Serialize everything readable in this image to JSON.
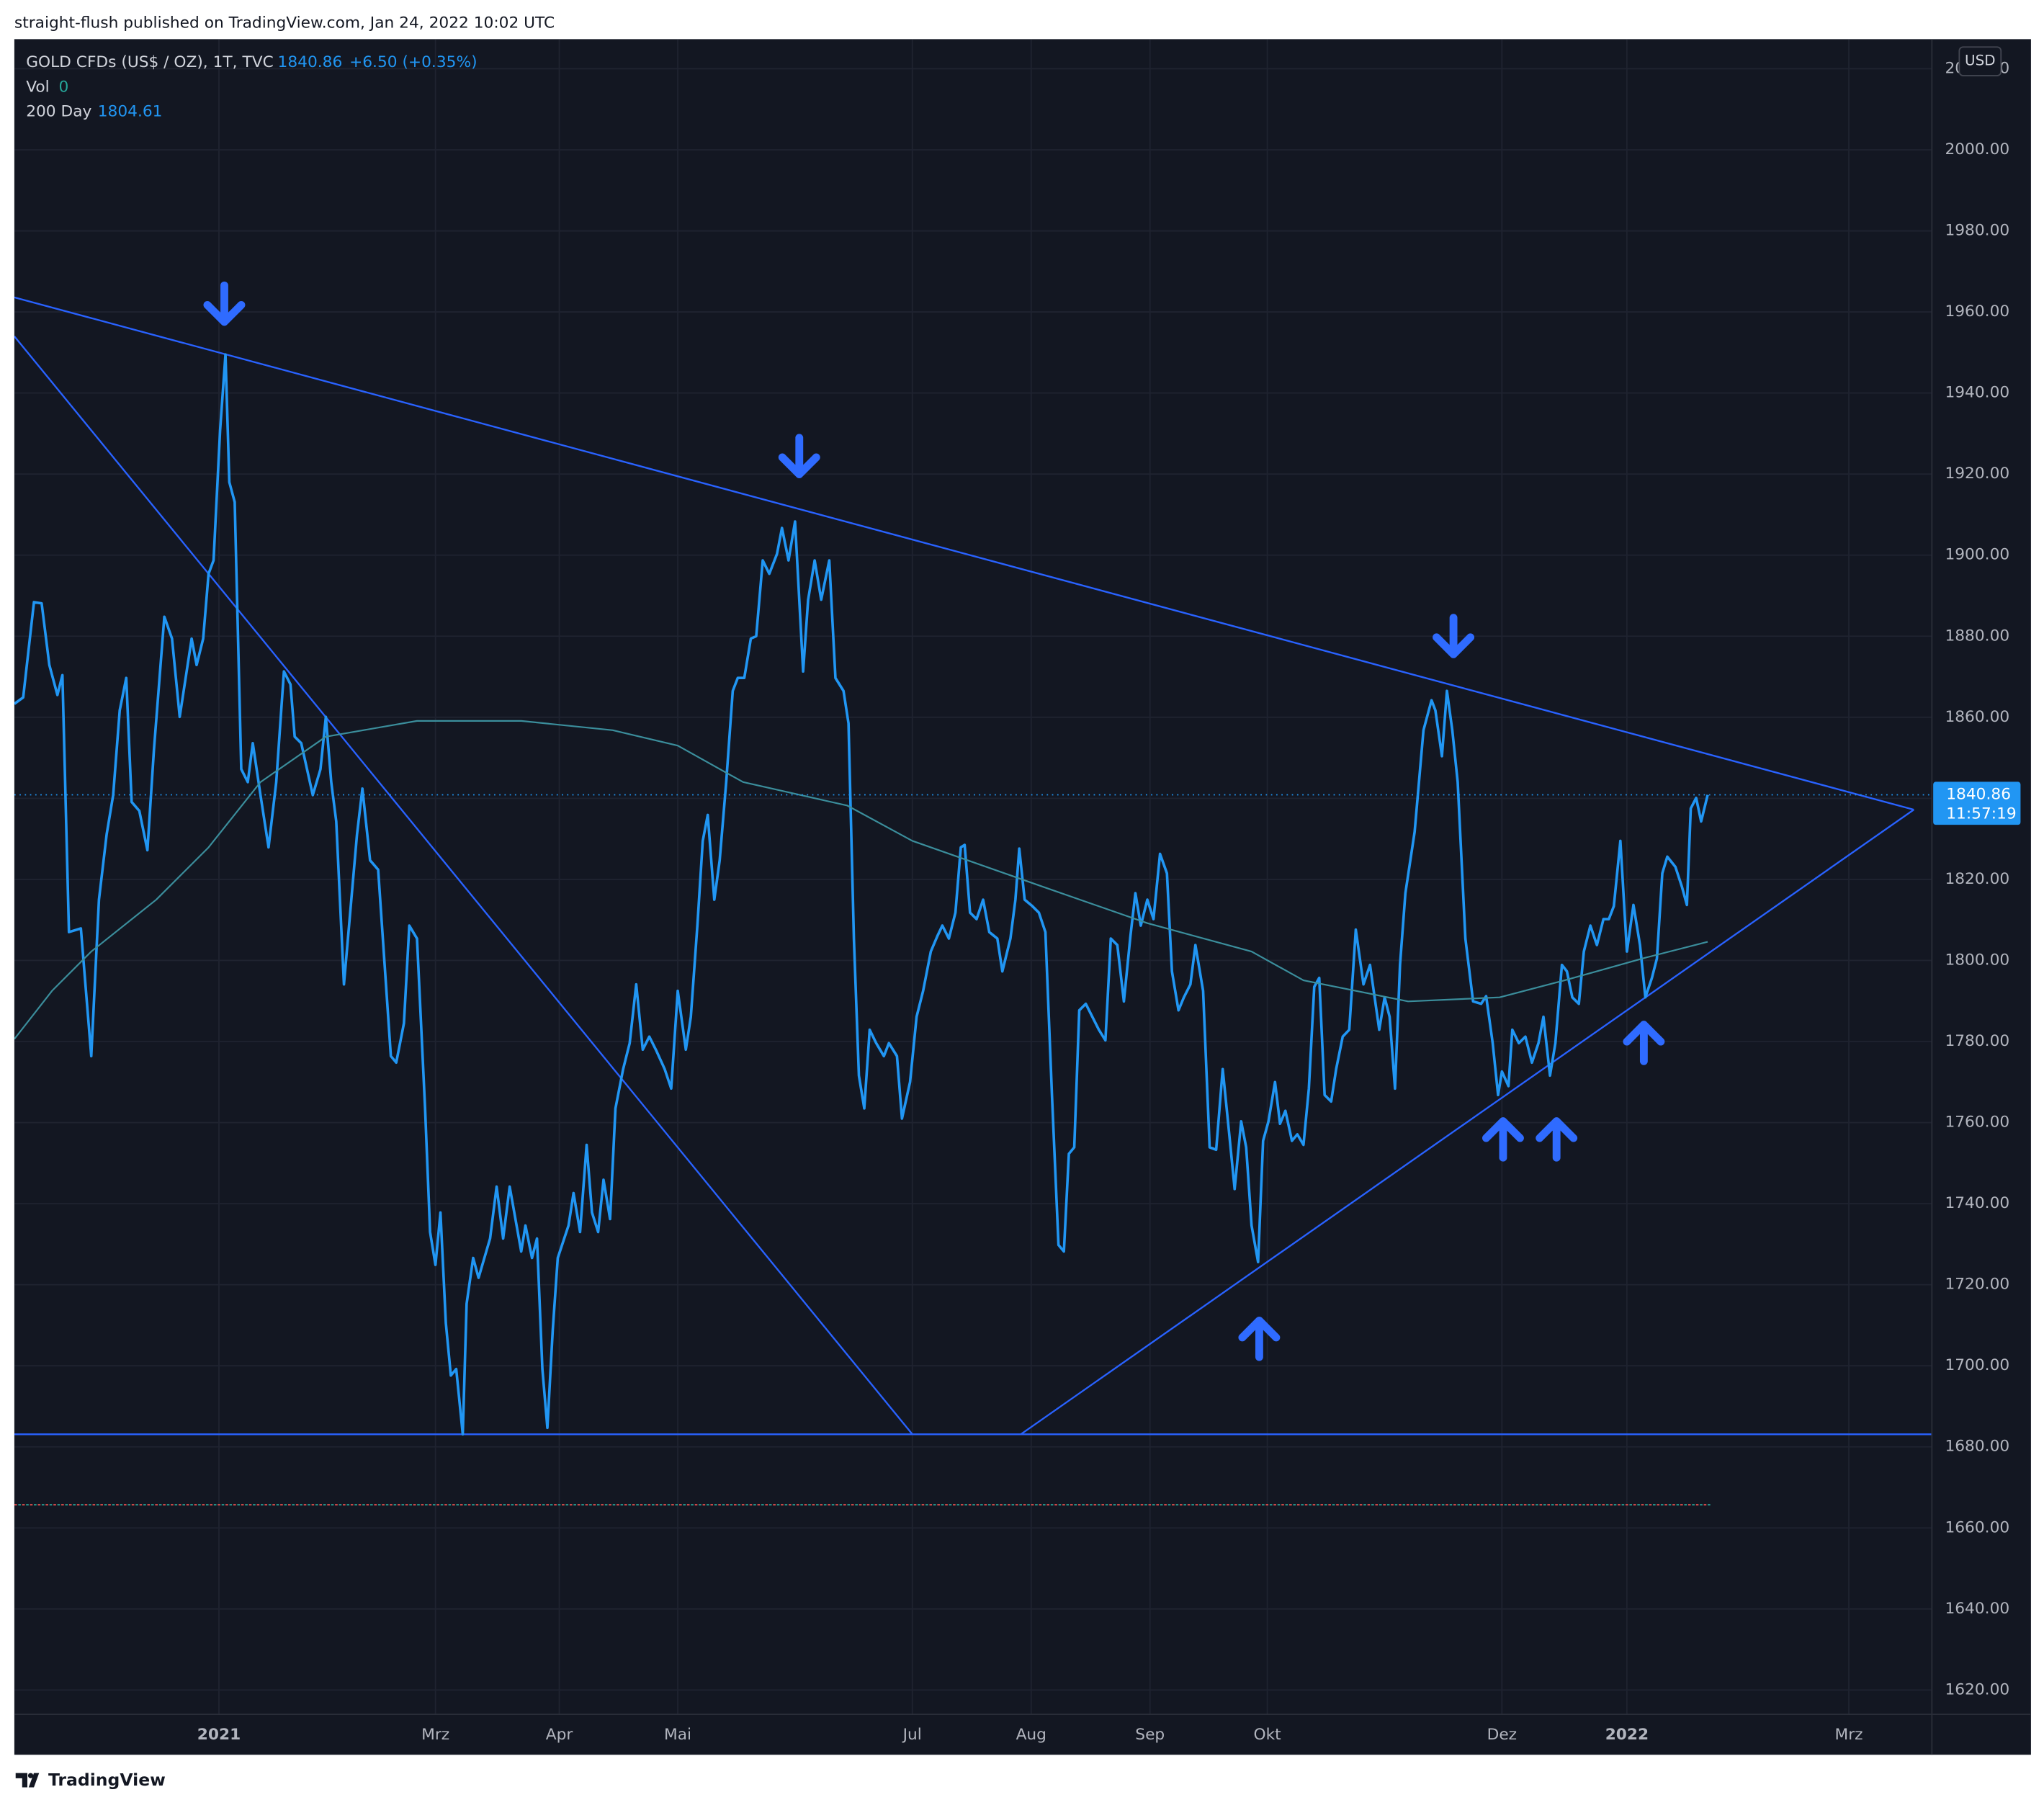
{
  "header": {
    "attribution": "straight-flush published on TradingView.com, Jan 24, 2022 10:02 UTC"
  },
  "footer": {
    "brand": "TradingView"
  },
  "chart_data": {
    "type": "line",
    "currency": "USD",
    "countdown": "11:57:19",
    "volume": {
      "name": "Vol",
      "value": 0
    },
    "xlim": [
      -53.2,
      445.4
    ],
    "ylim": [
      1614.0,
      2027.3
    ],
    "xticks": [
      {
        "value": 0,
        "label": "2021"
      },
      {
        "value": 56.3,
        "label": "Mrz"
      },
      {
        "value": 88.5,
        "label": "Apr"
      },
      {
        "value": 119.3,
        "label": "Mai"
      },
      {
        "value": 180.3,
        "label": "Jul"
      },
      {
        "value": 211.2,
        "label": "Aug"
      },
      {
        "value": 242.1,
        "label": "Sep"
      },
      {
        "value": 272.6,
        "label": "Okt"
      },
      {
        "value": 333.6,
        "label": "Dez"
      },
      {
        "value": 366.1,
        "label": "2022"
      },
      {
        "value": 423.8,
        "label": "Mrz"
      }
    ],
    "yticks": [
      {
        "value": 1620,
        "label": "1620.00"
      },
      {
        "value": 1640,
        "label": "1640.00"
      },
      {
        "value": 1660,
        "label": "1660.00"
      },
      {
        "value": 1680,
        "label": "1680.00"
      },
      {
        "value": 1700,
        "label": "1700.00"
      },
      {
        "value": 1720,
        "label": "1720.00"
      },
      {
        "value": 1740,
        "label": "1740.00"
      },
      {
        "value": 1760,
        "label": "1760.00"
      },
      {
        "value": 1780,
        "label": "1780.00"
      },
      {
        "value": 1800,
        "label": "1800.00"
      },
      {
        "value": 1820,
        "label": "1820.00"
      },
      {
        "value": 1840,
        "label": "1840.00"
      },
      {
        "value": 1860,
        "label": "1860.00"
      },
      {
        "value": 1880,
        "label": "1880.00"
      },
      {
        "value": 1900,
        "label": "1900.00"
      },
      {
        "value": 1920,
        "label": "1920.00"
      },
      {
        "value": 1940,
        "label": "1940.00"
      },
      {
        "value": 1960,
        "label": "1960.00"
      },
      {
        "value": 1980,
        "label": "1980.00"
      },
      {
        "value": 2000,
        "label": "2000.00"
      },
      {
        "value": 2020,
        "label": "2020.00"
      }
    ],
    "grid": true,
    "series": [
      {
        "name": "GOLD CFDs (US$ / OZ), 1T, TVC",
        "color": "#2196f3",
        "legend_value": 1840.86,
        "change": "+6.50 (+0.35%)",
        "x": [
          -53.2,
          -50.9,
          -48.1,
          -46.1,
          -44.1,
          -42.0,
          -40.7,
          -39.0,
          -35.9,
          -33.2,
          -31.2,
          -29.2,
          -27.5,
          -25.8,
          -24.1,
          -22.7,
          -20.7,
          -18.6,
          -16.9,
          -14.2,
          -12.2,
          -10.2,
          -7.1,
          -5.8,
          -4.1,
          -2.7,
          -1.4,
          0.3,
          1.7,
          2.7,
          4.1,
          5.8,
          7.5,
          8.8,
          10.8,
          12.9,
          14.9,
          16.9,
          18.6,
          19.7,
          21.4,
          24.4,
          26.4,
          27.8,
          29.2,
          30.5,
          32.5,
          35.9,
          37.3,
          39.3,
          41.4,
          44.7,
          46.1,
          48.1,
          49.5,
          51.5,
          53.6,
          54.9,
          56.3,
          57.6,
          59.0,
          60.3,
          61.7,
          63.4,
          64.4,
          66.1,
          67.5,
          70.5,
          72.2,
          73.9,
          75.6,
          78.6,
          79.7,
          81.4,
          82.7,
          84.1,
          85.4,
          86.8,
          88.1,
          90.9,
          92.2,
          93.9,
          95.6,
          97.0,
          98.6,
          100.0,
          101.7,
          103.1,
          105.1,
          106.8,
          108.5,
          110.2,
          111.9,
          113.6,
          115.9,
          117.6,
          119.3,
          121.4,
          122.7,
          124.4,
          125.8,
          127.1,
          128.8,
          130.2,
          131.9,
          133.6,
          134.9,
          136.6,
          138.3,
          139.7,
          141.4,
          143.1,
          145.1,
          146.4,
          148.1,
          149.8,
          151.9,
          153.2,
          154.9,
          156.6,
          158.7,
          160.3,
          162.4,
          163.7,
          165.1,
          166.4,
          167.8,
          169.2,
          170.9,
          172.9,
          174.2,
          176.3,
          177.6,
          179.7,
          181.4,
          183.1,
          185.1,
          186.8,
          188.1,
          189.8,
          191.5,
          192.9,
          193.9,
          195.3,
          197.0,
          198.7,
          200.3,
          202.4,
          203.7,
          205.8,
          207.1,
          208.1,
          209.5,
          211.5,
          213.2,
          214.9,
          216.6,
          218.3,
          219.7,
          221.0,
          222.4,
          223.7,
          225.4,
          227.1,
          228.8,
          230.5,
          231.9,
          233.6,
          235.3,
          237.0,
          238.3,
          239.7,
          241.4,
          243.0,
          244.7,
          246.5,
          247.8,
          249.5,
          250.9,
          252.6,
          253.9,
          255.9,
          257.6,
          259.3,
          261.0,
          262.7,
          264.1,
          265.8,
          267.1,
          268.5,
          270.2,
          271.5,
          272.9,
          274.6,
          275.9,
          277.3,
          279.0,
          280.4,
          282.0,
          283.4,
          284.8,
          286.1,
          287.5,
          289.2,
          290.5,
          292.2,
          293.9,
          295.6,
          297.6,
          299.3,
          301.7,
          303.1,
          304.4,
          305.8,
          307.1,
          308.5,
          310.9,
          313.2,
          315.3,
          316.3,
          318.0,
          319.3,
          320.7,
          322.1,
          324.1,
          326.1,
          328.2,
          329.5,
          331.2,
          332.6,
          333.6,
          335.3,
          336.3,
          338.0,
          339.7,
          341.4,
          343.1,
          344.4,
          346.1,
          347.5,
          349.2,
          350.5,
          351.9,
          353.6,
          354.9,
          356.6,
          358.3,
          360.0,
          361.4,
          362.7,
          364.4,
          366.1,
          367.8,
          369.5,
          370.9,
          372.6,
          373.9,
          375.3,
          376.6,
          378.7,
          380.4,
          381.7,
          382.7,
          384.1,
          385.4,
          387.1
        ],
        "values": [
          1863.3,
          1864.9,
          1888.4,
          1888.1,
          1872.9,
          1865.5,
          1870.4,
          1807.0,
          1807.9,
          1776.4,
          1815.0,
          1831.1,
          1840.8,
          1861.7,
          1869.7,
          1839.1,
          1836.9,
          1827.2,
          1852.0,
          1884.8,
          1879.4,
          1860.1,
          1879.4,
          1872.9,
          1879.4,
          1895.4,
          1898.7,
          1930.8,
          1949.5,
          1918.0,
          1913.1,
          1847.2,
          1844.0,
          1853.6,
          1840.8,
          1827.9,
          1844.0,
          1871.3,
          1868.1,
          1855.2,
          1853.6,
          1840.8,
          1847.2,
          1860.1,
          1844.0,
          1834.3,
          1794.1,
          1831.1,
          1842.4,
          1824.7,
          1822.4,
          1776.4,
          1774.8,
          1784.5,
          1808.6,
          1805.4,
          1763.5,
          1733.0,
          1724.9,
          1737.8,
          1710.5,
          1697.6,
          1699.2,
          1683.1,
          1715.3,
          1726.6,
          1721.7,
          1731.4,
          1744.2,
          1731.4,
          1744.2,
          1728.2,
          1734.6,
          1726.6,
          1731.4,
          1699.2,
          1684.7,
          1708.9,
          1726.6,
          1734.6,
          1742.6,
          1733.0,
          1754.5,
          1737.8,
          1733.0,
          1745.9,
          1736.2,
          1763.5,
          1773.2,
          1779.6,
          1794.1,
          1778.0,
          1781.2,
          1778.0,
          1773.2,
          1768.4,
          1792.5,
          1778.0,
          1786.1,
          1808.6,
          1829.5,
          1835.9,
          1815.0,
          1824.7,
          1844.0,
          1866.5,
          1869.7,
          1869.7,
          1879.4,
          1880.0,
          1898.7,
          1895.4,
          1900.3,
          1906.7,
          1898.7,
          1908.3,
          1871.3,
          1889.0,
          1898.7,
          1889.0,
          1898.7,
          1869.7,
          1866.5,
          1858.5,
          1805.4,
          1771.6,
          1763.5,
          1782.9,
          1779.6,
          1776.4,
          1779.6,
          1776.4,
          1761.0,
          1770.0,
          1786.1,
          1792.5,
          1802.2,
          1806.0,
          1808.6,
          1805.4,
          1811.8,
          1827.9,
          1828.5,
          1811.8,
          1810.2,
          1815.0,
          1807.0,
          1805.4,
          1797.3,
          1805.4,
          1815.0,
          1827.6,
          1815.0,
          1813.4,
          1811.8,
          1807.0,
          1766.8,
          1729.8,
          1728.2,
          1752.3,
          1753.9,
          1787.7,
          1789.3,
          1786.1,
          1782.9,
          1780.3,
          1805.4,
          1803.8,
          1789.9,
          1806.0,
          1816.6,
          1808.6,
          1815.0,
          1810.2,
          1826.3,
          1821.5,
          1797.3,
          1787.7,
          1790.9,
          1794.1,
          1803.8,
          1792.5,
          1753.9,
          1753.3,
          1773.2,
          1757.1,
          1743.6,
          1760.3,
          1753.9,
          1734.6,
          1725.6,
          1755.5,
          1760.3,
          1770.0,
          1759.7,
          1762.9,
          1755.5,
          1757.1,
          1754.5,
          1768.4,
          1793.5,
          1795.7,
          1766.8,
          1765.2,
          1773.2,
          1781.2,
          1782.9,
          1807.6,
          1794.1,
          1798.9,
          1782.9,
          1790.9,
          1786.1,
          1768.4,
          1798.9,
          1816.6,
          1831.7,
          1856.8,
          1864.2,
          1861.7,
          1850.4,
          1866.5,
          1856.8,
          1844.0,
          1805.4,
          1789.9,
          1789.3,
          1791.2,
          1779.6,
          1766.8,
          1772.6,
          1769.0,
          1782.9,
          1779.6,
          1781.2,
          1774.8,
          1779.6,
          1786.1,
          1771.6,
          1779.6,
          1798.9,
          1797.3,
          1790.9,
          1789.3,
          1802.2,
          1808.6,
          1803.8,
          1810.2,
          1810.2,
          1813.4,
          1829.5,
          1802.2,
          1813.7,
          1803.8,
          1790.9,
          1795.7,
          1800.5,
          1821.5,
          1825.6,
          1823.1,
          1818.2,
          1813.7,
          1837.5,
          1840.1,
          1834.3,
          1840.86
        ]
      },
      {
        "name": "200 Day",
        "color": "#3b8e9c",
        "legend_value": 1804.61,
        "x": [
          -53.2,
          -43.4,
          -33.2,
          -16.3,
          -2.7,
          10.8,
          27.8,
          51.5,
          78.6,
          102.4,
          119.3,
          136.3,
          163.4,
          180.3,
          214.2,
          241.4,
          268.5,
          282.0,
          309.2,
          333.0,
          349.9,
          370.2,
          387.1
        ],
        "values": [
          1780.6,
          1792.5,
          1802.2,
          1815.0,
          1827.9,
          1844.0,
          1855.2,
          1859.1,
          1859.1,
          1856.8,
          1853.0,
          1844.0,
          1838.2,
          1829.5,
          1818.2,
          1809.2,
          1802.2,
          1795.1,
          1789.9,
          1790.9,
          1795.1,
          1800.5,
          1804.61
        ]
      }
    ],
    "drawing_color": "#2962ff",
    "drawings": [
      {
        "x": [
          -53.2,
          440.7
        ],
        "y": [
          1963.6,
          1837.2
        ]
      },
      {
        "x": [
          -53.2,
          180.3
        ],
        "y": [
          1954.0,
          1683.1
        ]
      },
      {
        "x": [
          208.5,
          440.7
        ],
        "y": [
          1683.1,
          1837.2
        ]
      },
      {
        "x": [
          -53.2,
          445.4
        ],
        "y": [
          1683.1,
          1683.1
        ]
      }
    ],
    "dashed_level": {
      "value": 1665.7,
      "x": [
        -53.2,
        387.9
      ],
      "colors": [
        "#ef5350",
        "#26a69a"
      ]
    },
    "arrow_color": "#2f6bff",
    "arrows_down": {
      "x": [
        1.4,
        150.9,
        321.0
      ],
      "y": [
        1961.4,
        1923.8,
        1879.4
      ]
    },
    "arrows_up": {
      "x": [
        270.5,
        333.9,
        347.8,
        370.5
      ],
      "y": [
        1707.3,
        1756.5,
        1756.5,
        1780.3
      ]
    }
  }
}
